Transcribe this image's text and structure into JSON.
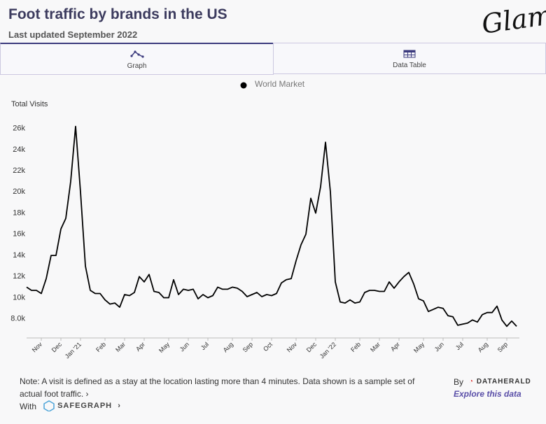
{
  "header": {
    "title": "Foot traffic by brands in the US",
    "subtitle": "Last updated September 2022",
    "logo": "Glam"
  },
  "tabs": [
    "Graph",
    "Data Table"
  ],
  "chart_data": {
    "type": "line",
    "y_label": "Total Visits",
    "categories": [
      null,
      null,
      null,
      "Nov",
      null,
      null,
      null,
      "Dec",
      null,
      null,
      null,
      "Jan '21",
      null,
      null,
      null,
      null,
      "Feb",
      null,
      null,
      null,
      "Mar",
      null,
      null,
      null,
      "Apr",
      null,
      null,
      null,
      null,
      "May",
      null,
      null,
      null,
      "Jun",
      null,
      null,
      null,
      "Jul",
      null,
      null,
      null,
      null,
      "Aug",
      null,
      null,
      null,
      "Sep",
      null,
      null,
      null,
      "Oct",
      null,
      null,
      null,
      null,
      "Nov",
      null,
      null,
      null,
      "Dec",
      null,
      null,
      null,
      "Jan '22",
      null,
      null,
      null,
      null,
      "Feb",
      null,
      null,
      null,
      "Mar",
      null,
      null,
      null,
      "Apr",
      null,
      null,
      null,
      null,
      "May",
      null,
      null,
      null,
      "Jun",
      null,
      null,
      null,
      "Jul",
      null,
      null,
      null,
      null,
      "Aug",
      null,
      null,
      null,
      "Sep",
      null,
      null
    ],
    "series": [
      {
        "name": "World Market",
        "color": "#000000",
        "values": [
          11000,
          10700,
          10700,
          10400,
          11800,
          14000,
          14000,
          16500,
          17500,
          21000,
          26200,
          20000,
          13000,
          10700,
          10400,
          10400,
          9800,
          9400,
          9500,
          9100,
          10300,
          10200,
          10500,
          12000,
          11500,
          12200,
          10600,
          10500,
          10000,
          10000,
          11700,
          10300,
          10800,
          10700,
          10800,
          9900,
          10300,
          10000,
          10200,
          11000,
          10800,
          10800,
          11000,
          10900,
          10600,
          10100,
          10300,
          10500,
          10100,
          10300,
          10200,
          10400,
          11400,
          11700,
          11800,
          13500,
          15000,
          16000,
          19400,
          18000,
          20500,
          24700,
          20000,
          11500,
          9600,
          9500,
          9800,
          9500,
          9600,
          10500,
          10700,
          10700,
          10600,
          10600,
          11500,
          10900,
          11500,
          12000,
          12400,
          11300,
          9900,
          9700,
          8700,
          8900,
          9100,
          9000,
          8300,
          8200,
          7400,
          7500,
          7600,
          7900,
          7700,
          8400,
          8600,
          8600,
          9200,
          7900,
          7300,
          7800,
          7300
        ]
      }
    ],
    "ylim": [
      6200,
      26900
    ],
    "yticks": [
      {
        "value": 8000,
        "label": "8.0k"
      },
      {
        "value": 10000,
        "label": "10k"
      },
      {
        "value": 12000,
        "label": "12k"
      },
      {
        "value": 14000,
        "label": "14k"
      },
      {
        "value": 16000,
        "label": "16k"
      },
      {
        "value": 18000,
        "label": "18k"
      },
      {
        "value": 20000,
        "label": "20k"
      },
      {
        "value": 22000,
        "label": "22k"
      },
      {
        "value": 24000,
        "label": "24k"
      },
      {
        "value": 26000,
        "label": "26k"
      }
    ],
    "grid": false,
    "legend": "top"
  },
  "footer": {
    "note": "Note: A visit is defined as a stay at the location lasting more than 4 minutes. Data shown is a sample set of",
    "note2": "actual foot traffic.",
    "by": "By",
    "brand": "DATAHERALD",
    "explore": "Explore this data",
    "with": "With",
    "partner": "SAFEGRAPH"
  }
}
